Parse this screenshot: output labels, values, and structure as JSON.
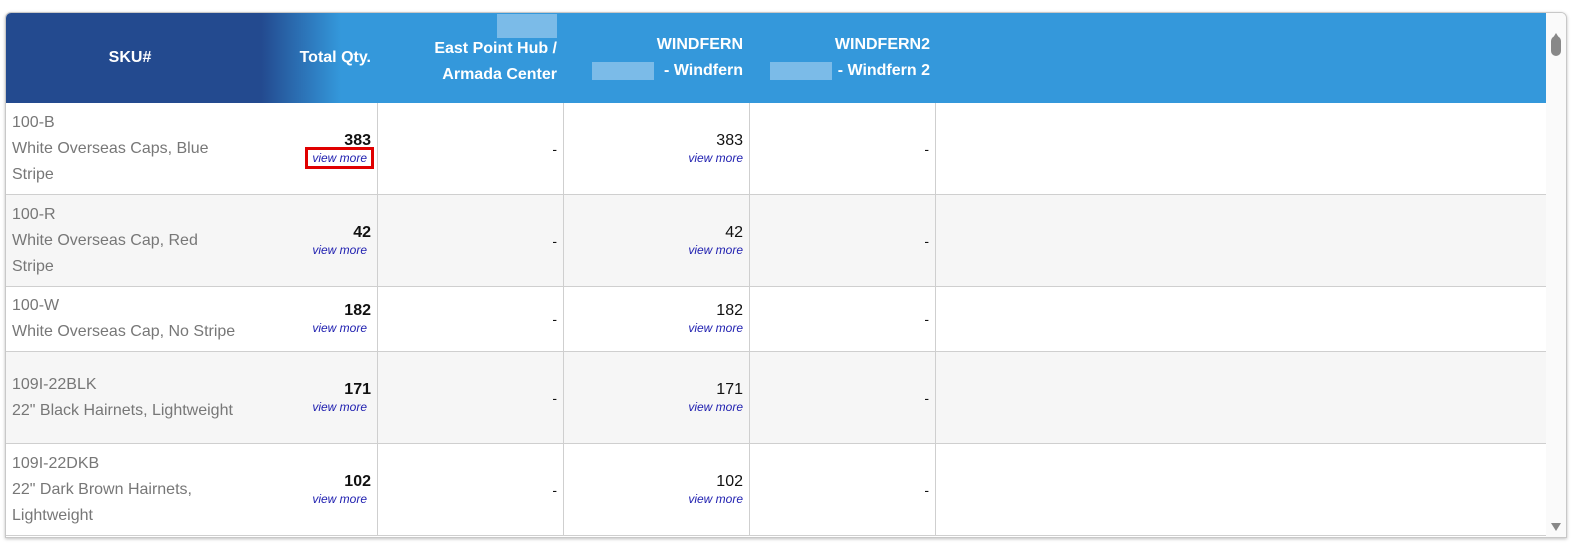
{
  "header": {
    "sku": "SKU#",
    "total_qty": "Total Qty.",
    "col1_line1": "East Point Hub /",
    "col1_line2": "Armada Center",
    "col2_line1": "WINDFERN",
    "col2_line2": "- Windfern",
    "col3_line1": "WINDFERN2",
    "col3_line2": "- Windfern 2"
  },
  "view_more_label": "view more",
  "colors": {
    "header_dark": "#234a8f",
    "header_light": "#3498db",
    "link": "#2020b0",
    "highlight": "#e00000"
  },
  "rows": [
    {
      "sku": "100-B",
      "desc": "White Overseas Caps, Blue Stripe",
      "total": "383",
      "east_point": "-",
      "windfern": "383",
      "windfern2": "-"
    },
    {
      "sku": "100-R",
      "desc": "White Overseas Cap, Red Stripe",
      "total": "42",
      "east_point": "-",
      "windfern": "42",
      "windfern2": "-"
    },
    {
      "sku": "100-W",
      "desc": "White Overseas Cap, No Stripe",
      "total": "182",
      "east_point": "-",
      "windfern": "182",
      "windfern2": "-"
    },
    {
      "sku": "109I-22BLK",
      "desc": "22\" Black Hairnets, Lightweight",
      "total": "171",
      "east_point": "-",
      "windfern": "171",
      "windfern2": "-"
    },
    {
      "sku": "109I-22DKB",
      "desc": "22\" Dark Brown Hairnets, Lightweight",
      "total": "102",
      "east_point": "-",
      "windfern": "102",
      "windfern2": "-"
    }
  ]
}
